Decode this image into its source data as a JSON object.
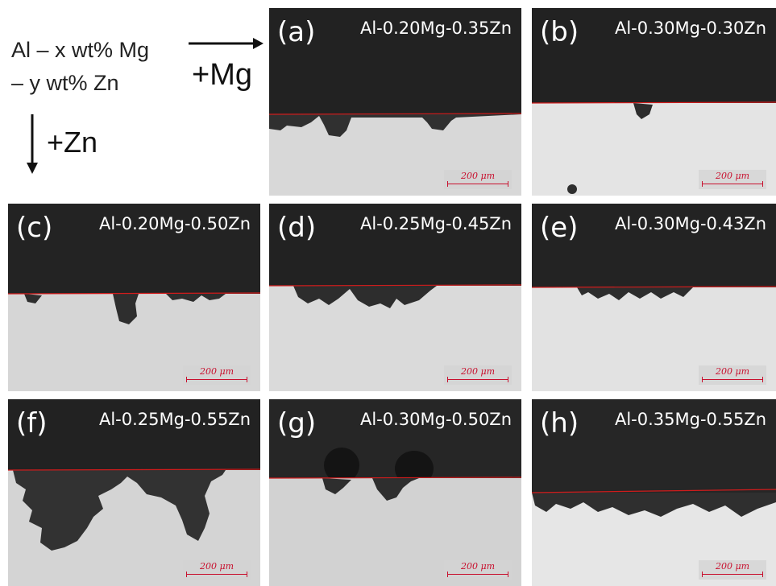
{
  "legend": {
    "line1": "Al – x wt% Mg",
    "line2": "– y wt% Zn",
    "mg_label": "+Mg",
    "zn_label": "+Zn"
  },
  "panels": [
    {
      "letter": "(a)",
      "title": "Al-0.20Mg-0.35Zn",
      "scale": "200 μm"
    },
    {
      "letter": "(b)",
      "title": "Al-0.30Mg-0.30Zn",
      "scale": "200 μm"
    },
    {
      "letter": "(c)",
      "title": "Al-0.20Mg-0.50Zn",
      "scale": "200 μm"
    },
    {
      "letter": "(d)",
      "title": "Al-0.25Mg-0.45Zn",
      "scale": "200 μm"
    },
    {
      "letter": "(e)",
      "title": "Al-0.30Mg-0.43Zn",
      "scale": "200 μm"
    },
    {
      "letter": "(f)",
      "title": "Al-0.25Mg-0.55Zn",
      "scale": "200 μm"
    },
    {
      "letter": "(g)",
      "title": "Al-0.30Mg-0.50Zn",
      "scale": "200 μm"
    },
    {
      "letter": "(h)",
      "title": "Al-0.35Mg-0.55Zn",
      "scale": "200 μm"
    }
  ],
  "colors": {
    "resin": "#232323",
    "metal": "#dcdcdc",
    "corrosion": "#2f2f2f",
    "boundary": "#d01c1c",
    "text": "#ffffff"
  }
}
